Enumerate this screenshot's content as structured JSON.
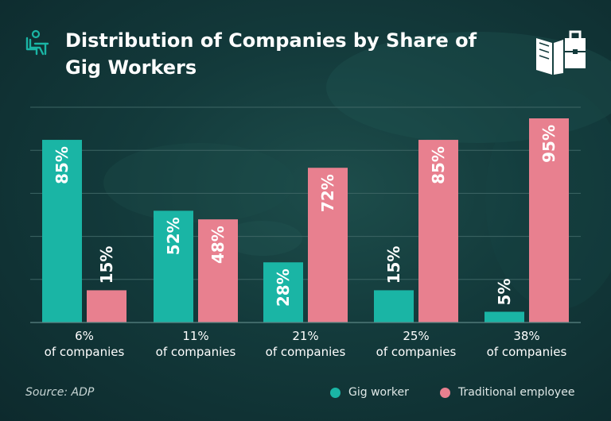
{
  "title_lines": [
    "Distribution of Companies by Share of",
    "Gig Workers"
  ],
  "source": "Source: ADP",
  "colors": {
    "gig": "#1ab5a5",
    "traditional": "#e8808f",
    "grid": "#3d6564",
    "text": "#ffffff"
  },
  "icons": {
    "header": "person-at-desk-icon",
    "brand": "book-briefcase-logo"
  },
  "chart_data": {
    "type": "bar",
    "title": "Distribution of Companies by Share of Gig Workers",
    "categories": [
      [
        "6%",
        "of companies"
      ],
      [
        "11%",
        "of companies"
      ],
      [
        "21%",
        "of companies"
      ],
      [
        "25%",
        "of companies"
      ],
      [
        "38%",
        "of companies"
      ]
    ],
    "series": [
      {
        "name": "Gig worker",
        "values": [
          85,
          52,
          28,
          15,
          5
        ],
        "labels": [
          "85%",
          "52%",
          "28%",
          "15%",
          "5%"
        ]
      },
      {
        "name": "Traditional employee",
        "values": [
          15,
          48,
          72,
          85,
          95
        ],
        "labels": [
          "15%",
          "48%",
          "72%",
          "85%",
          "95%"
        ]
      }
    ],
    "ylim": [
      0,
      100
    ],
    "grid": true,
    "legend": "bottom-right"
  }
}
